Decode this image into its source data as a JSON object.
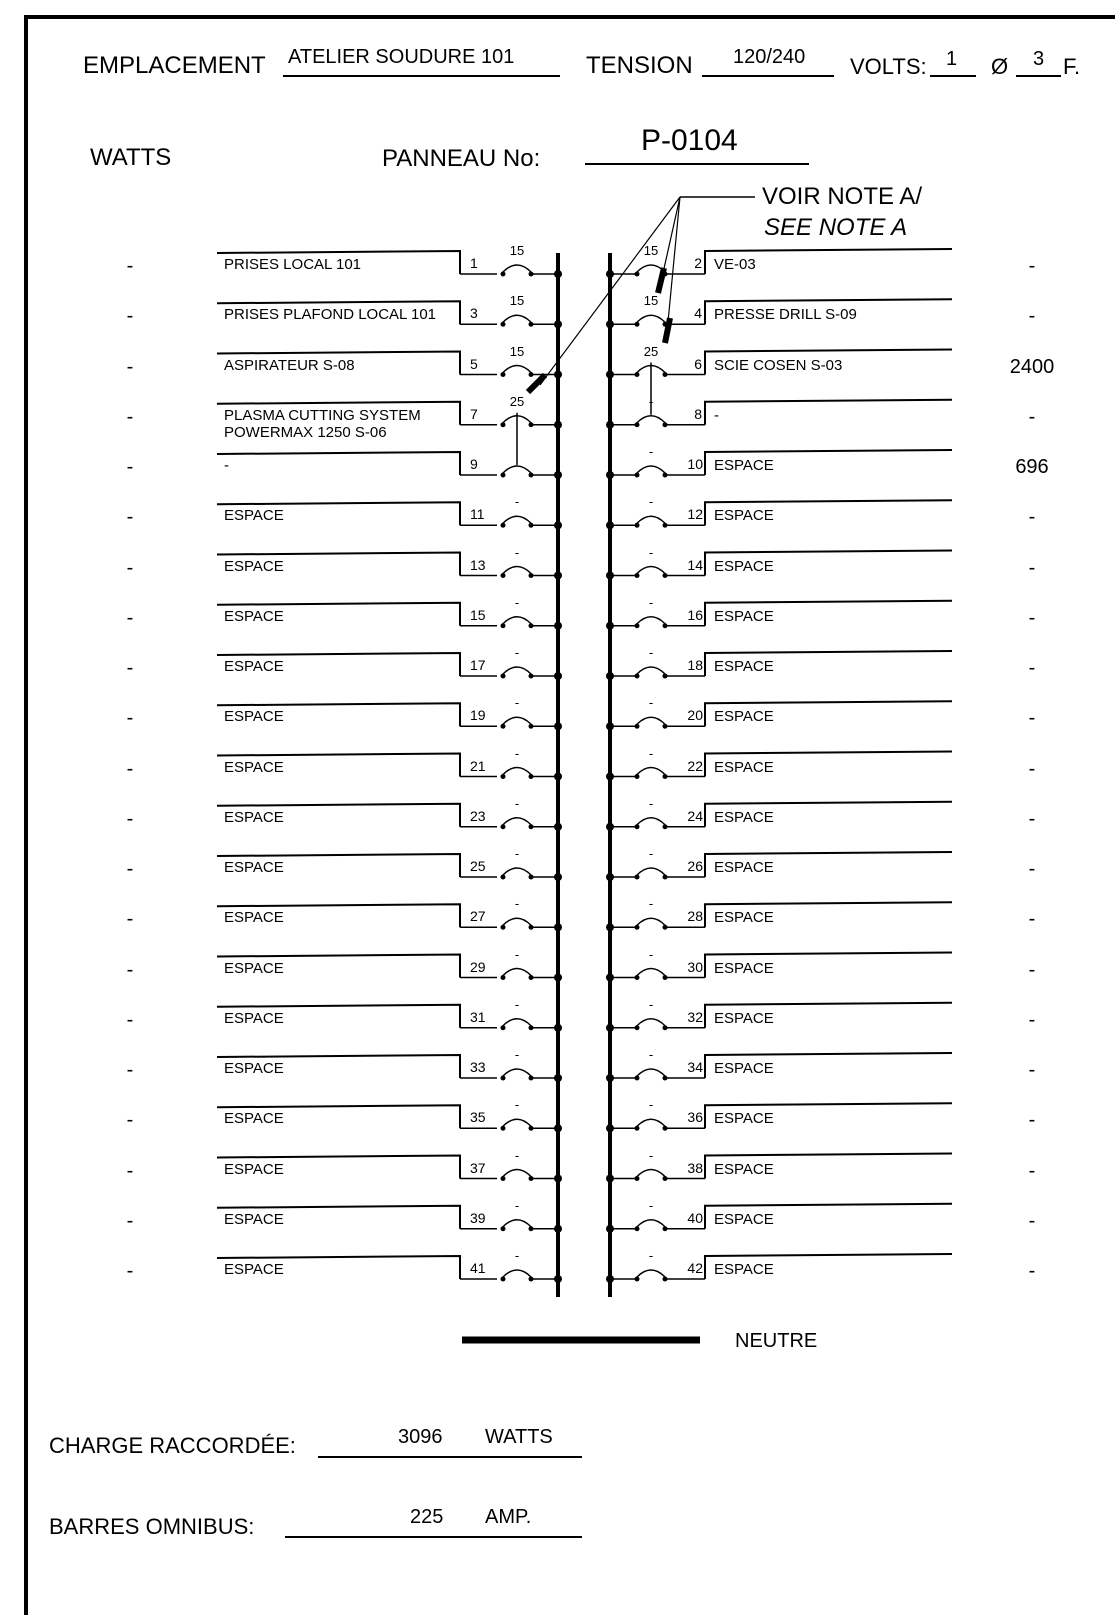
{
  "header": {
    "emplacement_label": "EMPLACEMENT",
    "emplacement_value": "ATELIER SOUDURE 101",
    "tension_label": "TENSION",
    "tension_value": "120/240",
    "volts_label": "VOLTS:",
    "phase_value": "1",
    "phase_symbol": "Ø",
    "wire_value": "3",
    "wire_suffix": "F.",
    "watts_label": "WATTS",
    "panel_label": "PANNEAU  No:",
    "panel_value": "P-0104",
    "note_line1": "VOIR NOTE A/",
    "note_line2": "SEE NOTE A"
  },
  "circuits_left": [
    {
      "num": "1",
      "desc": "PRISES LOCAL 101",
      "amp": "15",
      "watts": "-"
    },
    {
      "num": "3",
      "desc": "PRISES PLAFOND LOCAL 101",
      "amp": "15",
      "watts": "-"
    },
    {
      "num": "5",
      "desc": "ASPIRATEUR S-08",
      "amp": "15",
      "watts": "-"
    },
    {
      "num": "7",
      "desc": "PLASMA CUTTING SYSTEM POWERMAX 1250 S-06",
      "amp": "25",
      "watts": "-"
    },
    {
      "num": "9",
      "desc": "-",
      "amp": "",
      "watts": "-"
    },
    {
      "num": "11",
      "desc": "ESPACE",
      "amp": "-",
      "watts": "-"
    },
    {
      "num": "13",
      "desc": "ESPACE",
      "amp": "-",
      "watts": "-"
    },
    {
      "num": "15",
      "desc": "ESPACE",
      "amp": "-",
      "watts": "-"
    },
    {
      "num": "17",
      "desc": "ESPACE",
      "amp": "-",
      "watts": "-"
    },
    {
      "num": "19",
      "desc": "ESPACE",
      "amp": "-",
      "watts": "-"
    },
    {
      "num": "21",
      "desc": "ESPACE",
      "amp": "-",
      "watts": "-"
    },
    {
      "num": "23",
      "desc": "ESPACE",
      "amp": "-",
      "watts": "-"
    },
    {
      "num": "25",
      "desc": "ESPACE",
      "amp": "-",
      "watts": "-"
    },
    {
      "num": "27",
      "desc": "ESPACE",
      "amp": "-",
      "watts": "-"
    },
    {
      "num": "29",
      "desc": "ESPACE",
      "amp": "-",
      "watts": "-"
    },
    {
      "num": "31",
      "desc": "ESPACE",
      "amp": "-",
      "watts": "-"
    },
    {
      "num": "33",
      "desc": "ESPACE",
      "amp": "-",
      "watts": "-"
    },
    {
      "num": "35",
      "desc": "ESPACE",
      "amp": "-",
      "watts": "-"
    },
    {
      "num": "37",
      "desc": "ESPACE",
      "amp": "-",
      "watts": "-"
    },
    {
      "num": "39",
      "desc": "ESPACE",
      "amp": "-",
      "watts": "-"
    },
    {
      "num": "41",
      "desc": "ESPACE",
      "amp": "-",
      "watts": "-"
    }
  ],
  "circuits_right": [
    {
      "num": "2",
      "desc": "VE-03",
      "amp": "15",
      "watts": "-"
    },
    {
      "num": "4",
      "desc": "PRESSE DRILL S-09",
      "amp": "15",
      "watts": "-"
    },
    {
      "num": "6",
      "desc": "SCIE COSEN S-03",
      "amp": "25",
      "watts": "2400"
    },
    {
      "num": "8",
      "desc": "-",
      "amp": "-",
      "watts": "-"
    },
    {
      "num": "10",
      "desc": "ESPACE",
      "amp": "-",
      "watts": "696"
    },
    {
      "num": "12",
      "desc": "ESPACE",
      "amp": "-",
      "watts": "-"
    },
    {
      "num": "14",
      "desc": "ESPACE",
      "amp": "-",
      "watts": "-"
    },
    {
      "num": "16",
      "desc": "ESPACE",
      "amp": "-",
      "watts": "-"
    },
    {
      "num": "18",
      "desc": "ESPACE",
      "amp": "-",
      "watts": "-"
    },
    {
      "num": "20",
      "desc": "ESPACE",
      "amp": "-",
      "watts": "-"
    },
    {
      "num": "22",
      "desc": "ESPACE",
      "amp": "-",
      "watts": "-"
    },
    {
      "num": "24",
      "desc": "ESPACE",
      "amp": "-",
      "watts": "-"
    },
    {
      "num": "26",
      "desc": "ESPACE",
      "amp": "-",
      "watts": "-"
    },
    {
      "num": "28",
      "desc": "ESPACE",
      "amp": "-",
      "watts": "-"
    },
    {
      "num": "30",
      "desc": "ESPACE",
      "amp": "-",
      "watts": "-"
    },
    {
      "num": "32",
      "desc": "ESPACE",
      "amp": "-",
      "watts": "-"
    },
    {
      "num": "34",
      "desc": "ESPACE",
      "amp": "-",
      "watts": "-"
    },
    {
      "num": "36",
      "desc": "ESPACE",
      "amp": "-",
      "watts": "-"
    },
    {
      "num": "38",
      "desc": "ESPACE",
      "amp": "-",
      "watts": "-"
    },
    {
      "num": "40",
      "desc": "ESPACE",
      "amp": "-",
      "watts": "-"
    },
    {
      "num": "42",
      "desc": "ESPACE",
      "amp": "-",
      "watts": "-"
    }
  ],
  "neutral_label": "NEUTRE",
  "footer": {
    "load_label": "CHARGE  RACCORDÉE:",
    "load_value": "3096",
    "load_unit": "WATTS",
    "bus_label": "BARRES  OMNIBUS:",
    "bus_value": "225",
    "bus_unit": "AMP."
  }
}
